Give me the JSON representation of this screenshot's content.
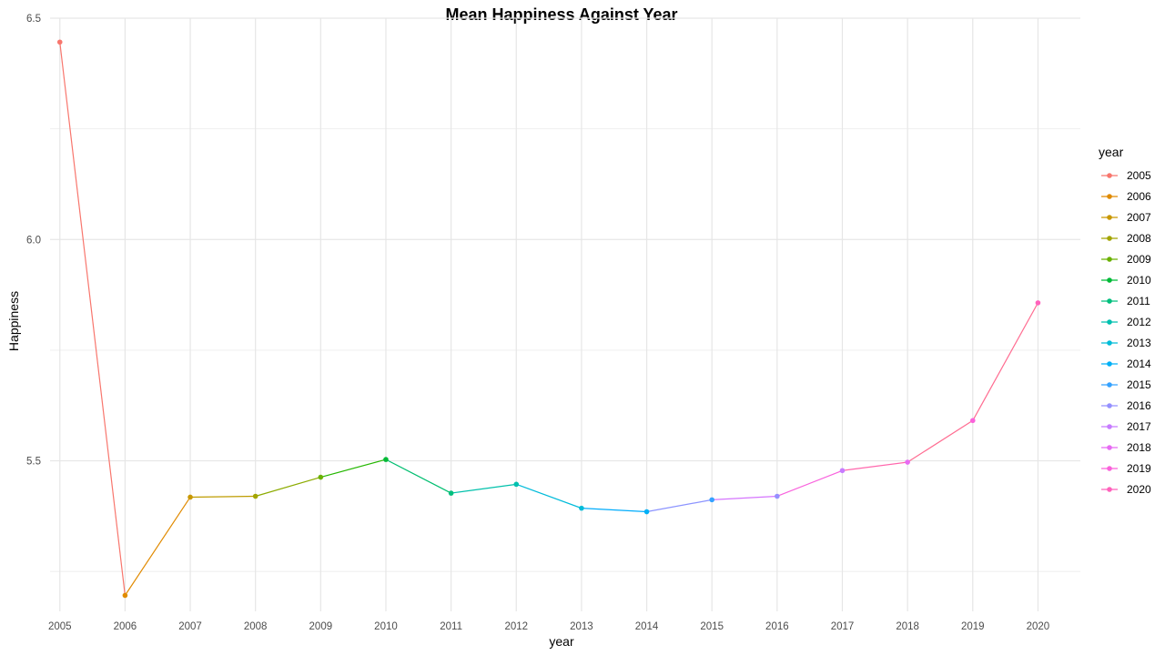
{
  "chart_data": {
    "type": "line",
    "title": "Mean Happiness Against Year",
    "xlabel": "year",
    "ylabel": "Happiness",
    "x": [
      2005,
      2006,
      2007,
      2008,
      2009,
      2010,
      2011,
      2012,
      2013,
      2014,
      2015,
      2016,
      2017,
      2018,
      2019,
      2020
    ],
    "y": [
      6.446,
      5.196,
      5.418,
      5.42,
      5.463,
      5.503,
      5.427,
      5.447,
      5.393,
      5.385,
      5.412,
      5.42,
      5.478,
      5.497,
      5.591,
      5.857
    ],
    "xlim": [
      2004.85,
      2020.65
    ],
    "ylim": [
      5.16,
      6.5
    ],
    "x_ticks": [
      "2005",
      "2006",
      "2007",
      "2008",
      "2009",
      "2010",
      "2011",
      "2012",
      "2013",
      "2014",
      "2015",
      "2016",
      "2017",
      "2018",
      "2019",
      "2020"
    ],
    "y_ticks": [
      5.5,
      6.0,
      6.5
    ],
    "y_tick_labels": [
      "5.5",
      "6.0",
      "6.5"
    ],
    "y_minor_gridlines": [
      5.25,
      5.75,
      6.25
    ],
    "grid": true,
    "color_by": "year",
    "colors": [
      "#F8766D",
      "#E18A00",
      "#BE9C00",
      "#8CAB00",
      "#24B700",
      "#00BE70",
      "#00C1AB",
      "#00BBDA",
      "#00ACFC",
      "#8B93FF",
      "#D575FE",
      "#F962DD",
      "#FF65AC",
      "#FF6C91",
      "#FF6C91",
      "#E36EF6"
    ],
    "legend": {
      "title": "year",
      "placement": "right",
      "entries": [
        "2005",
        "2006",
        "2007",
        "2008",
        "2009",
        "2010",
        "2011",
        "2012",
        "2013",
        "2014",
        "2015",
        "2016",
        "2017",
        "2018",
        "2019",
        "2020"
      ],
      "colors": [
        "#F8766D",
        "#E08B00",
        "#C99800",
        "#A3A500",
        "#6BB100",
        "#00BA38",
        "#00BF7D",
        "#00C0AF",
        "#00BCD8",
        "#00B0F6",
        "#35A2FF",
        "#9590FF",
        "#C77CFF",
        "#E76BF3",
        "#FA62DB",
        "#FF62BC"
      ]
    }
  }
}
